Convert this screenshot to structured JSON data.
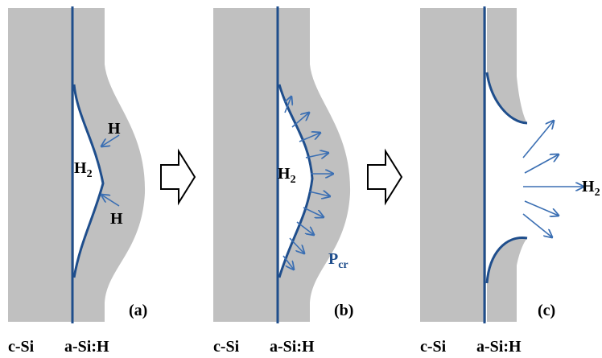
{
  "panels": [
    {
      "label": "(a)",
      "layers": [
        "c-Si",
        "a-Si:H"
      ],
      "annotations": [
        {
          "text": "H"
        },
        {
          "text": "H",
          "sub": "2"
        },
        {
          "text": "H"
        }
      ]
    },
    {
      "label": "(b)",
      "layers": [
        "c-Si",
        "a-Si:H"
      ],
      "annotations": [
        {
          "text": "H",
          "sub": "2"
        },
        {
          "text": "P",
          "sub": "cr"
        }
      ]
    },
    {
      "label": "(c)",
      "layers": [
        "c-Si",
        "a-Si:H"
      ],
      "annotations": [
        {
          "text": "H",
          "sub": "2"
        }
      ]
    }
  ]
}
